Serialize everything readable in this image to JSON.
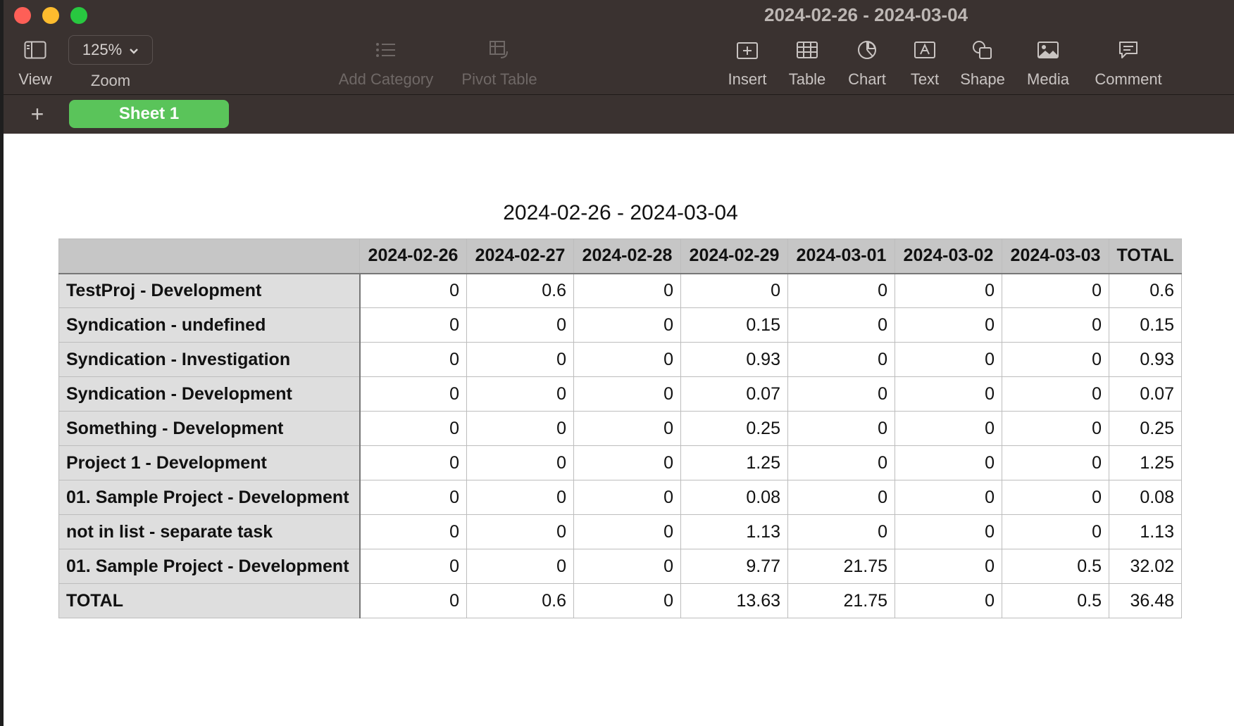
{
  "window": {
    "title": "2024-02-26 - 2024-03-04"
  },
  "toolbar": {
    "view_label": "View",
    "zoom_value": "125%",
    "zoom_label": "Zoom",
    "add_category_label": "Add Category",
    "pivot_table_label": "Pivot Table",
    "insert_label": "Insert",
    "table_label": "Table",
    "chart_label": "Chart",
    "text_label": "Text",
    "shape_label": "Shape",
    "media_label": "Media",
    "comment_label": "Comment"
  },
  "sheets": {
    "add": "+",
    "tabs": [
      {
        "label": "Sheet 1"
      }
    ]
  },
  "table": {
    "title": "2024-02-26 - 2024-03-04",
    "header": [
      "",
      "2024-02-26",
      "2024-02-27",
      "2024-02-28",
      "2024-02-29",
      "2024-03-01",
      "2024-03-02",
      "2024-03-03",
      "TOTAL"
    ],
    "rows": [
      [
        "TestProj - Development",
        "0",
        "0.6",
        "0",
        "0",
        "0",
        "0",
        "0",
        "0.6"
      ],
      [
        "Syndication - undefined",
        "0",
        "0",
        "0",
        "0.15",
        "0",
        "0",
        "0",
        "0.15"
      ],
      [
        "Syndication - Investigation",
        "0",
        "0",
        "0",
        "0.93",
        "0",
        "0",
        "0",
        "0.93"
      ],
      [
        "Syndication - Development",
        "0",
        "0",
        "0",
        "0.07",
        "0",
        "0",
        "0",
        "0.07"
      ],
      [
        "Something - Development",
        "0",
        "0",
        "0",
        "0.25",
        "0",
        "0",
        "0",
        "0.25"
      ],
      [
        "Project 1 - Development",
        "0",
        "0",
        "0",
        "1.25",
        "0",
        "0",
        "0",
        "1.25"
      ],
      [
        "01. Sample Project - Development",
        "0",
        "0",
        "0",
        "0.08",
        "0",
        "0",
        "0",
        "0.08"
      ],
      [
        "not in list - separate task",
        "0",
        "0",
        "0",
        "1.13",
        "0",
        "0",
        "0",
        "1.13"
      ],
      [
        "01. Sample Project - Development",
        "0",
        "0",
        "0",
        "9.77",
        "21.75",
        "0",
        "0.5",
        "32.02"
      ],
      [
        "TOTAL",
        "0",
        "0.6",
        "0",
        "13.63",
        "21.75",
        "0",
        "0.5",
        "36.48"
      ]
    ]
  }
}
